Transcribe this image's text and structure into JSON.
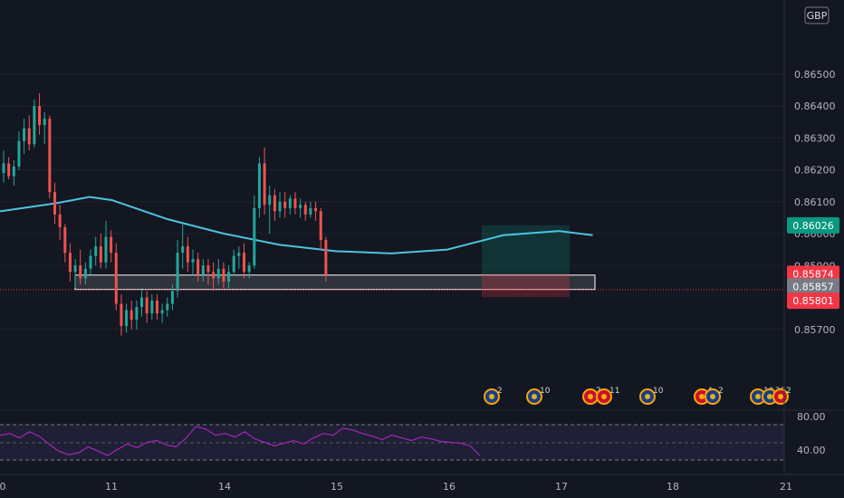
{
  "chart_data": {
    "type": "candlestick",
    "instrument_currency": "GBP",
    "price_axis": {
      "ticks": [
        "0.85700",
        "0.85900",
        "0.86000",
        "0.86100",
        "0.86200",
        "0.86300",
        "0.86400",
        "0.86500"
      ],
      "range": [
        0.8563,
        0.8655
      ]
    },
    "time_axis": {
      "ticks": [
        "0",
        "11",
        "14",
        "15",
        "16",
        "17",
        "18",
        "21"
      ]
    },
    "price_tags": [
      {
        "value": "0.86026",
        "color": "#089981"
      },
      {
        "value": "0.85874",
        "color": "#f23645"
      },
      {
        "value": "0.85857",
        "color": "#787b86"
      },
      {
        "value": "0.85801",
        "color": "#f23645"
      }
    ],
    "moving_average": {
      "color": "#4ec3e0",
      "points": [
        [
          0.0,
          0.8607
        ],
        [
          0.5,
          0.86095
        ],
        [
          0.8,
          0.86115
        ],
        [
          1.0,
          0.86105
        ],
        [
          1.5,
          0.86045
        ],
        [
          2.0,
          0.86
        ],
        [
          2.5,
          0.85965
        ],
        [
          3.0,
          0.85945
        ],
        [
          3.5,
          0.85938
        ],
        [
          4.0,
          0.8595
        ],
        [
          4.5,
          0.85995
        ],
        [
          5.0,
          0.86008
        ],
        [
          5.3,
          0.85995
        ]
      ]
    },
    "candles_ohlc_by_day_index": [
      [
        0.0,
        0.8619,
        0.8626,
        0.8616,
        0.8622
      ],
      [
        0.05,
        0.8622,
        0.8624,
        0.8617,
        0.8618
      ],
      [
        0.1,
        0.8618,
        0.8623,
        0.8615,
        0.8621
      ],
      [
        0.15,
        0.8621,
        0.8632,
        0.862,
        0.8629
      ],
      [
        0.2,
        0.8629,
        0.8636,
        0.8625,
        0.8633
      ],
      [
        0.25,
        0.8633,
        0.8637,
        0.8626,
        0.8628
      ],
      [
        0.3,
        0.8628,
        0.8642,
        0.8627,
        0.864
      ],
      [
        0.35,
        0.864,
        0.8644,
        0.8631,
        0.8634
      ],
      [
        0.4,
        0.8634,
        0.8638,
        0.8628,
        0.8636
      ],
      [
        0.45,
        0.8636,
        0.8637,
        0.8611,
        0.8613
      ],
      [
        0.5,
        0.8613,
        0.8616,
        0.8603,
        0.8606
      ],
      [
        0.55,
        0.8606,
        0.8609,
        0.8598,
        0.8602
      ],
      [
        0.6,
        0.8602,
        0.8603,
        0.8591,
        0.8594
      ],
      [
        0.65,
        0.8594,
        0.8597,
        0.8585,
        0.8588
      ],
      [
        0.7,
        0.8588,
        0.8592,
        0.8583,
        0.859
      ],
      [
        0.75,
        0.859,
        0.8595,
        0.8584,
        0.8586
      ],
      [
        0.8,
        0.8586,
        0.8591,
        0.8584,
        0.8589
      ],
      [
        0.85,
        0.8589,
        0.8595,
        0.8587,
        0.8593
      ],
      [
        0.9,
        0.8593,
        0.8599,
        0.859,
        0.8596
      ],
      [
        0.95,
        0.8596,
        0.86,
        0.8589,
        0.8591
      ],
      [
        1.0,
        0.8591,
        0.8604,
        0.8589,
        0.8599
      ],
      [
        1.05,
        0.8599,
        0.8601,
        0.8591,
        0.8594
      ],
      [
        1.1,
        0.8594,
        0.8597,
        0.8576,
        0.8578
      ],
      [
        1.15,
        0.8578,
        0.8581,
        0.8568,
        0.8571
      ],
      [
        1.2,
        0.8571,
        0.8578,
        0.8569,
        0.8576
      ],
      [
        1.25,
        0.8576,
        0.8579,
        0.857,
        0.8573
      ],
      [
        1.3,
        0.8573,
        0.8579,
        0.857,
        0.8577
      ],
      [
        1.35,
        0.8577,
        0.8583,
        0.8574,
        0.858
      ],
      [
        1.4,
        0.858,
        0.8582,
        0.8572,
        0.8575
      ],
      [
        1.45,
        0.8575,
        0.8581,
        0.8573,
        0.8579
      ],
      [
        1.5,
        0.8579,
        0.8581,
        0.8573,
        0.8575
      ],
      [
        1.55,
        0.8575,
        0.8578,
        0.8572,
        0.8576
      ],
      [
        1.6,
        0.8576,
        0.858,
        0.8574,
        0.8578
      ],
      [
        1.65,
        0.8578,
        0.8584,
        0.8576,
        0.8582
      ],
      [
        1.7,
        0.8582,
        0.8598,
        0.858,
        0.8594
      ],
      [
        1.75,
        0.8594,
        0.8603,
        0.8589,
        0.8596
      ],
      [
        1.8,
        0.8596,
        0.8599,
        0.8588,
        0.8591
      ],
      [
        1.85,
        0.8591,
        0.8595,
        0.8587,
        0.8592
      ],
      [
        1.9,
        0.8592,
        0.8594,
        0.8585,
        0.8587
      ],
      [
        1.95,
        0.8587,
        0.8592,
        0.8585,
        0.859
      ],
      [
        2.0,
        0.859,
        0.8592,
        0.8584,
        0.8588
      ],
      [
        2.05,
        0.8588,
        0.8591,
        0.8582,
        0.8586
      ],
      [
        2.1,
        0.8586,
        0.8592,
        0.8584,
        0.8589
      ],
      [
        2.15,
        0.8589,
        0.8591,
        0.8583,
        0.8585
      ],
      [
        2.2,
        0.8585,
        0.859,
        0.8583,
        0.8588
      ],
      [
        2.25,
        0.8588,
        0.8595,
        0.8587,
        0.8593
      ],
      [
        2.3,
        0.8593,
        0.8596,
        0.8589,
        0.8594
      ],
      [
        2.35,
        0.8594,
        0.8597,
        0.8586,
        0.8588
      ],
      [
        2.4,
        0.8588,
        0.8591,
        0.8586,
        0.859
      ],
      [
        2.45,
        0.859,
        0.8612,
        0.8589,
        0.8608
      ],
      [
        2.5,
        0.8608,
        0.8624,
        0.8605,
        0.8622
      ],
      [
        2.55,
        0.8622,
        0.8627,
        0.8606,
        0.8609
      ],
      [
        2.6,
        0.8609,
        0.8615,
        0.86,
        0.8612
      ],
      [
        2.65,
        0.8612,
        0.8614,
        0.8604,
        0.8607
      ],
      [
        2.7,
        0.8607,
        0.8613,
        0.8605,
        0.861
      ],
      [
        2.75,
        0.861,
        0.8613,
        0.8605,
        0.8608
      ],
      [
        2.8,
        0.8608,
        0.8612,
        0.8606,
        0.8611
      ],
      [
        2.85,
        0.8611,
        0.8613,
        0.8606,
        0.8608
      ],
      [
        2.9,
        0.8608,
        0.8611,
        0.8605,
        0.8609
      ],
      [
        2.95,
        0.8609,
        0.861,
        0.8604,
        0.8606
      ],
      [
        3.0,
        0.8606,
        0.861,
        0.8605,
        0.8608
      ],
      [
        3.05,
        0.8608,
        0.861,
        0.8604,
        0.8607
      ],
      [
        3.1,
        0.8607,
        0.8608,
        0.8595,
        0.8598
      ],
      [
        3.15,
        0.8598,
        0.8599,
        0.8585,
        0.8587
      ]
    ],
    "rsi": {
      "levels": [
        "80.00",
        "40.00"
      ],
      "band": [
        30,
        70
      ],
      "color": "#9b27b0",
      "values": [
        58,
        60,
        55,
        62,
        57,
        48,
        40,
        36,
        38,
        45,
        40,
        35,
        42,
        48,
        44,
        50,
        52,
        47,
        45,
        55,
        68,
        65,
        58,
        60,
        56,
        62,
        54,
        50,
        46,
        49,
        52,
        48,
        55,
        60,
        58,
        66,
        64,
        60,
        57,
        53,
        58,
        55,
        52,
        56,
        54,
        51,
        50,
        49,
        46,
        35
      ]
    },
    "event_markers": [
      {
        "label": "2",
        "icon": "eu-flag-icon"
      },
      {
        "label": "10",
        "icon": "eu-flag-icon"
      },
      {
        "label": "2",
        "icon": "uk-flag-icon"
      },
      {
        "label": "11",
        "icon": "uk-flag-icon"
      },
      {
        "label": "10",
        "icon": "eu-flag-icon"
      },
      {
        "label": "4",
        "icon": "uk-flag-icon"
      },
      {
        "label": "2",
        "icon": "eu-flag-icon"
      },
      {
        "label": "10",
        "icon": "eu-flag-icon"
      },
      {
        "label": "20",
        "icon": "eu-flag-icon"
      },
      {
        "label": "2",
        "icon": "uk-flag-icon"
      }
    ]
  }
}
